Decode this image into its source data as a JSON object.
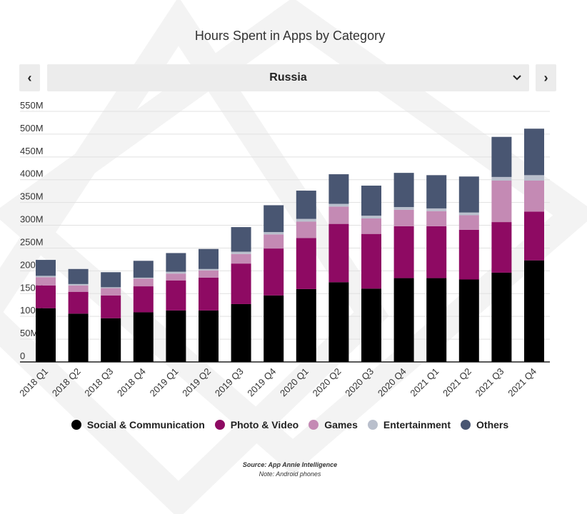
{
  "header": {
    "title": "Hours Spent in Apps by Category"
  },
  "selector": {
    "prev_label": "‹",
    "next_label": "›",
    "current": "Russia"
  },
  "chart_data": {
    "type": "bar",
    "stacked": true,
    "title": "Hours Spent in Apps by Category",
    "xlabel": "",
    "ylabel": "",
    "ylim": [
      0,
      550
    ],
    "yticks": [
      0,
      50,
      100,
      150,
      200,
      250,
      300,
      350,
      400,
      450,
      500,
      550
    ],
    "ytick_labels": [
      "0",
      "50M",
      "100M",
      "150M",
      "200M",
      "250M",
      "300M",
      "350M",
      "400M",
      "450M",
      "500M",
      "550M"
    ],
    "grid": true,
    "legend_position": "bottom",
    "categories": [
      "2018 Q1",
      "2018 Q2",
      "2018 Q3",
      "2018 Q4",
      "2019 Q1",
      "2019 Q2",
      "2019 Q3",
      "2019 Q4",
      "2020 Q1",
      "2020 Q2",
      "2020 Q3",
      "2020 Q4",
      "2021 Q1",
      "2021 Q2",
      "2021 Q3",
      "2021 Q4"
    ],
    "series": [
      {
        "name": "Social & Communication",
        "color": "#000000",
        "values": [
          118,
          106,
          96,
          109,
          113,
          113,
          127,
          146,
          160,
          175,
          161,
          184,
          184,
          181,
          196,
          223
        ]
      },
      {
        "name": "Photo & Video",
        "color": "#8e0a63",
        "values": [
          50,
          48,
          50,
          57,
          66,
          72,
          89,
          103,
          112,
          128,
          120,
          114,
          114,
          109,
          111,
          107
        ]
      },
      {
        "name": "Games",
        "color": "#c48ab4",
        "values": [
          18,
          14,
          16,
          17,
          15,
          16,
          21,
          31,
          36,
          38,
          34,
          36,
          33,
          32,
          91,
          68
        ]
      },
      {
        "name": "Entertainment",
        "color": "#b9bfcc",
        "values": [
          3,
          3,
          2,
          2,
          4,
          3,
          5,
          5,
          6,
          6,
          6,
          6,
          6,
          6,
          8,
          12
        ]
      },
      {
        "name": "Others",
        "color": "#495672",
        "values": [
          35,
          33,
          33,
          37,
          41,
          44,
          54,
          59,
          62,
          65,
          66,
          75,
          73,
          79,
          88,
          102
        ]
      }
    ]
  },
  "footer": {
    "source": "Source: App Annie Intelligence",
    "note": "Note: Android phones"
  }
}
